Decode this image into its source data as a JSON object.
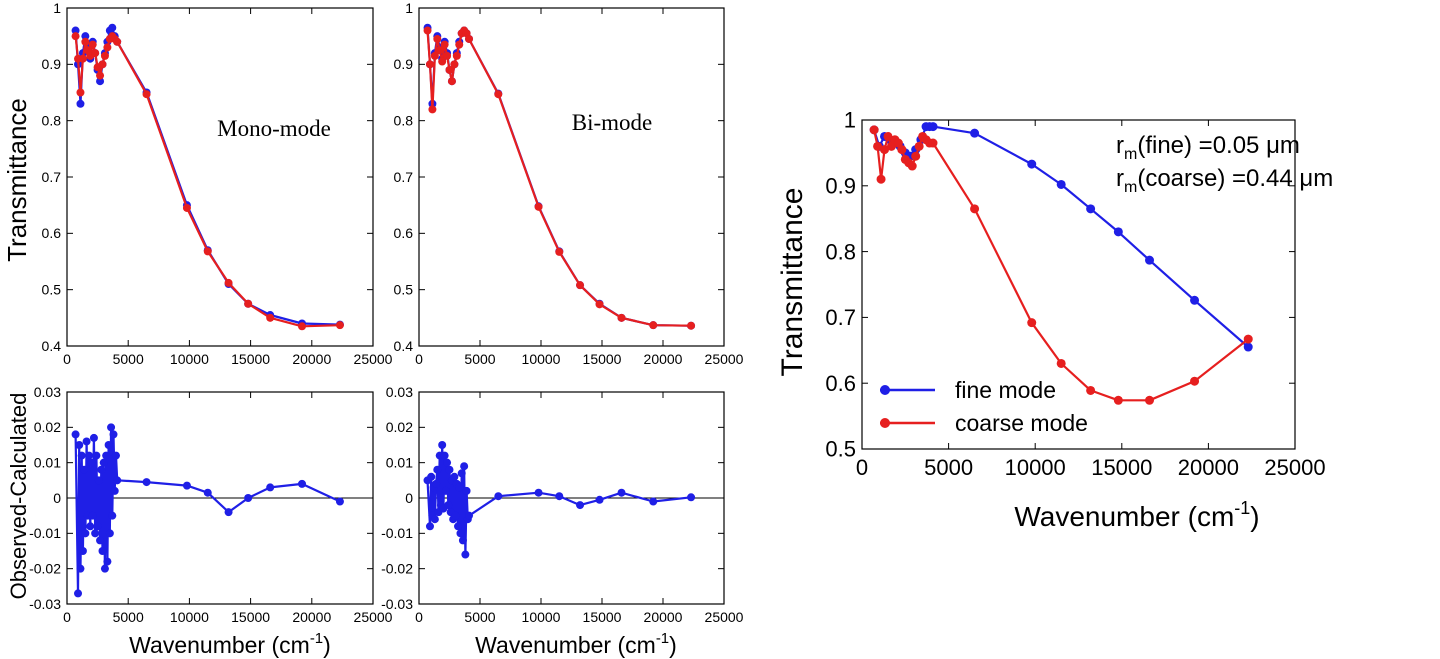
{
  "colors": {
    "fine": "#1f1fe6",
    "coarse": "#e61f1f",
    "axis": "#000000",
    "residual": "#1f1fe6"
  },
  "labels": {
    "transmittance": "Transmittance",
    "residual": "Observed-Calculated",
    "wavenumber": "Wavenumber (cm",
    "wavenumber_exp": "-1",
    "wavenumber_close": ")"
  },
  "annotation": {
    "fine_label": "r",
    "fine_sub": "m",
    "fine_text": "(fine) =0.05 μm",
    "coarse_label": "r",
    "coarse_sub": "m",
    "coarse_text": "(coarse) =0.44 μm"
  },
  "chart_data": [
    {
      "id": "mono-top",
      "type": "line",
      "title": "Mono-mode",
      "xlabel": "",
      "ylabel": "Transmittance",
      "xlim": [
        0,
        25000
      ],
      "ylim": [
        0.4,
        1.0
      ],
      "xticks": [
        "0",
        "5000",
        "10000",
        "15000",
        "20000",
        "25000"
      ],
      "yticks": [
        "0.4",
        "0.5",
        "0.6",
        "0.7",
        "0.8",
        "0.9",
        "1"
      ],
      "series": [
        {
          "name": "observed",
          "color": "fine",
          "x": [
            700,
            900,
            1100,
            1300,
            1500,
            1700,
            1900,
            2100,
            2300,
            2500,
            2700,
            2900,
            3100,
            3300,
            3500,
            3700,
            3900,
            4100,
            6500,
            9800,
            11500,
            13200,
            14800,
            16600,
            19200,
            22300
          ],
          "y": [
            0.96,
            0.9,
            0.83,
            0.92,
            0.95,
            0.93,
            0.91,
            0.94,
            0.92,
            0.89,
            0.87,
            0.9,
            0.92,
            0.94,
            0.96,
            0.965,
            0.95,
            0.94,
            0.85,
            0.65,
            0.57,
            0.51,
            0.475,
            0.455,
            0.44,
            0.438
          ]
        },
        {
          "name": "calculated",
          "color": "coarse",
          "x": [
            700,
            900,
            1100,
            1300,
            1500,
            1700,
            1900,
            2100,
            2300,
            2500,
            2700,
            2900,
            3100,
            3300,
            3500,
            3700,
            3900,
            4100,
            6500,
            9800,
            11500,
            13200,
            14800,
            16600,
            19200,
            22300
          ],
          "y": [
            0.95,
            0.91,
            0.85,
            0.91,
            0.94,
            0.925,
            0.915,
            0.935,
            0.92,
            0.895,
            0.88,
            0.9,
            0.915,
            0.93,
            0.945,
            0.95,
            0.945,
            0.94,
            0.847,
            0.645,
            0.568,
            0.512,
            0.475,
            0.45,
            0.435,
            0.437
          ]
        }
      ]
    },
    {
      "id": "bi-top",
      "type": "line",
      "title": "Bi-mode",
      "xlabel": "",
      "ylabel": "",
      "xlim": [
        0,
        25000
      ],
      "ylim": [
        0.4,
        1.0
      ],
      "xticks": [
        "0",
        "5000",
        "10000",
        "15000",
        "20000",
        "25000"
      ],
      "yticks": [
        "0.4",
        "0.5",
        "0.6",
        "0.7",
        "0.8",
        "0.9",
        "1"
      ],
      "series": [
        {
          "name": "observed",
          "color": "fine",
          "x": [
            700,
            900,
            1100,
            1300,
            1500,
            1700,
            1900,
            2100,
            2300,
            2500,
            2700,
            2900,
            3100,
            3300,
            3500,
            3700,
            3900,
            4100,
            6500,
            9800,
            11500,
            13200,
            14800,
            16600,
            19200,
            22300
          ],
          "y": [
            0.965,
            0.9,
            0.83,
            0.92,
            0.95,
            0.93,
            0.91,
            0.94,
            0.92,
            0.89,
            0.87,
            0.9,
            0.92,
            0.94,
            0.955,
            0.96,
            0.955,
            0.945,
            0.848,
            0.648,
            0.568,
            0.508,
            0.475,
            0.45,
            0.437,
            0.436
          ]
        },
        {
          "name": "calculated",
          "color": "coarse",
          "x": [
            700,
            900,
            1100,
            1300,
            1500,
            1700,
            1900,
            2100,
            2300,
            2500,
            2700,
            2900,
            3100,
            3300,
            3500,
            3700,
            3900,
            4100,
            6500,
            9800,
            11500,
            13200,
            14800,
            16600,
            19200,
            22300
          ],
          "y": [
            0.96,
            0.9,
            0.82,
            0.915,
            0.945,
            0.925,
            0.905,
            0.935,
            0.915,
            0.89,
            0.87,
            0.9,
            0.915,
            0.935,
            0.955,
            0.96,
            0.955,
            0.945,
            0.847,
            0.647,
            0.567,
            0.508,
            0.474,
            0.45,
            0.437,
            0.436
          ]
        }
      ]
    },
    {
      "id": "mono-residual",
      "type": "line",
      "title": "",
      "xlabel": "Wavenumber (cm-1)",
      "ylabel": "Observed-Calculated",
      "xlim": [
        0,
        25000
      ],
      "ylim": [
        -0.03,
        0.03
      ],
      "xticks": [
        "0",
        "5000",
        "10000",
        "15000",
        "20000",
        "25000"
      ],
      "yticks": [
        "-0.03",
        "-0.02",
        "-0.01",
        "0",
        "0.01",
        "0.02",
        "0.03"
      ],
      "series": [
        {
          "name": "residual",
          "color": "residual",
          "x": [
            700,
            900,
            1000,
            1100,
            1200,
            1300,
            1400,
            1500,
            1600,
            1700,
            1800,
            1900,
            2000,
            2100,
            2200,
            2300,
            2400,
            2500,
            2600,
            2700,
            2800,
            2900,
            3000,
            3100,
            3200,
            3300,
            3400,
            3500,
            3600,
            3700,
            3800,
            3900,
            4000,
            4100,
            6500,
            9800,
            11500,
            13200,
            14800,
            16600,
            19200,
            22300
          ],
          "y": [
            0.018,
            -0.027,
            0.015,
            -0.02,
            0.012,
            -0.015,
            0.008,
            -0.01,
            0.016,
            -0.005,
            0.012,
            -0.008,
            0.01,
            -0.005,
            0.017,
            -0.01,
            0.012,
            -0.008,
            0.005,
            -0.012,
            0.008,
            -0.015,
            0.01,
            -0.02,
            0.012,
            -0.018,
            0.015,
            -0.01,
            0.02,
            -0.005,
            0.018,
            0.002,
            0.012,
            0.005,
            0.0045,
            0.0035,
            0.0015,
            -0.004,
            0.0,
            0.003,
            0.004,
            -0.001
          ]
        }
      ]
    },
    {
      "id": "bi-residual",
      "type": "line",
      "title": "",
      "xlabel": "Wavenumber (cm-1)",
      "ylabel": "",
      "xlim": [
        0,
        25000
      ],
      "ylim": [
        -0.03,
        0.03
      ],
      "xticks": [
        "0",
        "5000",
        "10000",
        "15000",
        "20000",
        "25000"
      ],
      "yticks": [
        "-0.03",
        "-0.02",
        "-0.01",
        "0",
        "0.01",
        "0.02",
        "0.03"
      ],
      "series": [
        {
          "name": "residual",
          "color": "residual",
          "x": [
            700,
            900,
            1000,
            1100,
            1200,
            1300,
            1400,
            1500,
            1600,
            1700,
            1800,
            1900,
            2000,
            2100,
            2200,
            2300,
            2400,
            2500,
            2600,
            2700,
            2800,
            2900,
            3000,
            3100,
            3200,
            3300,
            3400,
            3500,
            3600,
            3700,
            3800,
            3900,
            4000,
            4100,
            6500,
            9800,
            11500,
            13200,
            14800,
            16600,
            19200,
            22300
          ],
          "y": [
            0.005,
            -0.008,
            0.006,
            -0.005,
            0.003,
            -0.006,
            0.004,
            0.008,
            -0.004,
            0.012,
            -0.002,
            0.015,
            -0.003,
            0.012,
            0.002,
            0.01,
            -0.002,
            0.008,
            -0.004,
            0.005,
            -0.006,
            0.006,
            -0.005,
            0.004,
            -0.008,
            0.003,
            -0.01,
            0.007,
            -0.012,
            0.009,
            -0.016,
            0.002,
            -0.006,
            -0.005,
            0.0005,
            0.0015,
            0.0005,
            -0.002,
            -0.0005,
            0.0015,
            -0.001,
            0.0002
          ]
        }
      ]
    },
    {
      "id": "modes",
      "type": "line",
      "title": "",
      "xlabel": "Wavenumber (cm-1)",
      "ylabel": "Transmittance",
      "xlim": [
        0,
        25000
      ],
      "ylim": [
        0.5,
        1.0
      ],
      "xticks": [
        "0",
        "5000",
        "10000",
        "15000",
        "20000",
        "25000"
      ],
      "yticks": [
        "0.5",
        "0.6",
        "0.7",
        "0.8",
        "0.9",
        "1"
      ],
      "legend_position": "bottom-left",
      "series": [
        {
          "name": "fine mode",
          "color": "fine",
          "x": [
            700,
            1000,
            1300,
            1600,
            1900,
            2200,
            2500,
            2800,
            3100,
            3400,
            3700,
            3900,
            4100,
            6500,
            9800,
            11500,
            13200,
            14800,
            16600,
            19200,
            22300
          ],
          "y": [
            0.985,
            0.96,
            0.975,
            0.97,
            0.965,
            0.96,
            0.95,
            0.945,
            0.955,
            0.97,
            0.99,
            0.99,
            0.99,
            0.98,
            0.933,
            0.902,
            0.865,
            0.83,
            0.787,
            0.726,
            0.655
          ]
        },
        {
          "name": "coarse mode",
          "color": "coarse",
          "x": [
            700,
            900,
            1100,
            1300,
            1500,
            1700,
            1900,
            2100,
            2300,
            2500,
            2700,
            2900,
            3100,
            3300,
            3500,
            3700,
            3900,
            4100,
            6500,
            9800,
            11500,
            13200,
            14800,
            16600,
            19200,
            22300
          ],
          "y": [
            0.985,
            0.96,
            0.91,
            0.955,
            0.975,
            0.96,
            0.97,
            0.965,
            0.955,
            0.94,
            0.935,
            0.93,
            0.945,
            0.96,
            0.975,
            0.97,
            0.965,
            0.965,
            0.865,
            0.692,
            0.63,
            0.589,
            0.574,
            0.574,
            0.603,
            0.667
          ]
        }
      ]
    }
  ]
}
